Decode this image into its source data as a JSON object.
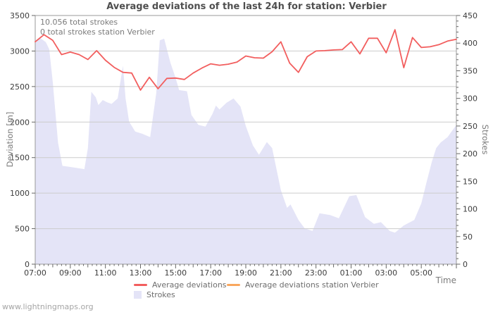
{
  "page": {
    "watermark": "www.lightningmaps.org"
  },
  "annotations": {
    "total_strokes": "10.056 total strokes",
    "station_strokes": "0 total strokes station Verbier"
  },
  "chart_data": {
    "type": "line+area",
    "title": "Average deviations of the last 24h for station: Verbier",
    "xlabel": "Time",
    "ylabel_left": "Deviation [m]",
    "ylabel_right": "Strokes",
    "x_unit": "hours after 07:00",
    "x_range": [
      0,
      24
    ],
    "ylim_left": [
      0,
      3500
    ],
    "ylim_right": [
      0,
      450
    ],
    "grid_on": true,
    "grid_values_left": [
      500,
      1000,
      1500,
      2000,
      2500,
      3000
    ],
    "y_left_ticks": [
      0,
      500,
      1000,
      1500,
      2000,
      2500,
      3000,
      3500
    ],
    "y_right_ticks": [
      0,
      50,
      100,
      150,
      200,
      250,
      300,
      350,
      400,
      450
    ],
    "y_right_minor_step": 10,
    "x_tick_hours": [
      0,
      2,
      4,
      6,
      8,
      10,
      12,
      14,
      16,
      18,
      20,
      22
    ],
    "x_tick_labels": [
      "07:00",
      "09:00",
      "11:00",
      "13:00",
      "15:00",
      "17:00",
      "19:00",
      "21:00",
      "23:00",
      "01:00",
      "03:00",
      "05:00"
    ],
    "style": {
      "grid_color": "#cccccc",
      "frame_color": "#999999",
      "tick_color": "#666666",
      "tick_label_color": "#3c3c3c"
    },
    "legend": [
      {
        "label": "Average deviations",
        "type": "line",
        "color": "#f25e5e"
      },
      {
        "label": "Average deviations station Verbier",
        "type": "line",
        "color": "#f9a75e"
      },
      {
        "label": "Strokes",
        "type": "area",
        "color": "#e4e4f7"
      }
    ],
    "series": [
      {
        "name": "Strokes",
        "type": "area",
        "axis": "right",
        "color": "#e4e4f7",
        "points": [
          [
            0,
            400
          ],
          [
            0.25,
            410
          ],
          [
            0.6,
            402
          ],
          [
            0.8,
            389
          ],
          [
            1,
            330
          ],
          [
            1.3,
            220
          ],
          [
            1.55,
            178
          ],
          [
            2.2,
            175
          ],
          [
            2.8,
            172
          ],
          [
            3,
            210
          ],
          [
            3.2,
            312
          ],
          [
            3.45,
            302
          ],
          [
            3.6,
            288
          ],
          [
            3.85,
            297
          ],
          [
            4.1,
            293
          ],
          [
            4.35,
            290
          ],
          [
            4.7,
            300
          ],
          [
            5,
            359
          ],
          [
            5.15,
            300
          ],
          [
            5.35,
            258
          ],
          [
            5.7,
            240
          ],
          [
            6.1,
            236
          ],
          [
            6.55,
            230
          ],
          [
            6.9,
            310
          ],
          [
            7.1,
            405
          ],
          [
            7.35,
            408
          ],
          [
            7.7,
            365
          ],
          [
            8,
            337
          ],
          [
            8.2,
            315
          ],
          [
            8.65,
            313
          ],
          [
            8.9,
            270
          ],
          [
            9.3,
            252
          ],
          [
            9.7,
            249
          ],
          [
            10.1,
            272
          ],
          [
            10.3,
            287
          ],
          [
            10.5,
            280
          ],
          [
            10.9,
            292
          ],
          [
            11.3,
            300
          ],
          [
            11.7,
            285
          ],
          [
            12,
            250
          ],
          [
            12.4,
            215
          ],
          [
            12.75,
            198
          ],
          [
            13.2,
            221
          ],
          [
            13.5,
            210
          ],
          [
            14,
            134
          ],
          [
            14.35,
            102
          ],
          [
            14.55,
            108
          ],
          [
            15,
            80
          ],
          [
            15.35,
            65
          ],
          [
            15.8,
            60
          ],
          [
            16.2,
            92
          ],
          [
            16.8,
            89
          ],
          [
            17.3,
            83
          ],
          [
            17.9,
            123
          ],
          [
            18.3,
            125
          ],
          [
            18.8,
            85
          ],
          [
            19.3,
            73
          ],
          [
            19.7,
            76
          ],
          [
            20.2,
            60
          ],
          [
            20.5,
            57
          ],
          [
            21,
            70
          ],
          [
            21.6,
            80
          ],
          [
            22,
            110
          ],
          [
            22.3,
            148
          ],
          [
            22.6,
            185
          ],
          [
            22.85,
            210
          ],
          [
            23.1,
            220
          ],
          [
            23.5,
            230
          ],
          [
            24,
            252
          ]
        ]
      },
      {
        "name": "Average deviations",
        "type": "line",
        "axis": "left",
        "color": "#f25e5e",
        "points": [
          [
            0,
            3130
          ],
          [
            0.5,
            3230
          ],
          [
            1,
            3150
          ],
          [
            1.5,
            2950
          ],
          [
            2,
            2985
          ],
          [
            2.5,
            2950
          ],
          [
            3,
            2880
          ],
          [
            3.5,
            3005
          ],
          [
            4,
            2870
          ],
          [
            4.5,
            2770
          ],
          [
            5,
            2700
          ],
          [
            5.5,
            2690
          ],
          [
            6,
            2450
          ],
          [
            6.5,
            2630
          ],
          [
            7,
            2470
          ],
          [
            7.5,
            2615
          ],
          [
            8,
            2620
          ],
          [
            8.5,
            2600
          ],
          [
            9,
            2690
          ],
          [
            9.5,
            2760
          ],
          [
            10,
            2820
          ],
          [
            10.5,
            2800
          ],
          [
            11,
            2815
          ],
          [
            11.5,
            2845
          ],
          [
            12,
            2930
          ],
          [
            12.5,
            2905
          ],
          [
            13,
            2900
          ],
          [
            13.5,
            2990
          ],
          [
            14,
            3130
          ],
          [
            14.5,
            2830
          ],
          [
            15,
            2700
          ],
          [
            15.5,
            2920
          ],
          [
            16,
            3000
          ],
          [
            16.5,
            3005
          ],
          [
            17,
            3015
          ],
          [
            17.5,
            3020
          ],
          [
            18,
            3130
          ],
          [
            18.5,
            2960
          ],
          [
            19,
            3180
          ],
          [
            19.5,
            3180
          ],
          [
            20,
            2975
          ],
          [
            20.5,
            3300
          ],
          [
            21,
            2765
          ],
          [
            21.5,
            3190
          ],
          [
            22,
            3050
          ],
          [
            22.5,
            3060
          ],
          [
            23,
            3090
          ],
          [
            23.5,
            3140
          ],
          [
            24,
            3165
          ]
        ]
      },
      {
        "name": "Average deviations station Verbier",
        "type": "line",
        "axis": "left",
        "color": "#f9a75e",
        "points": []
      }
    ]
  }
}
